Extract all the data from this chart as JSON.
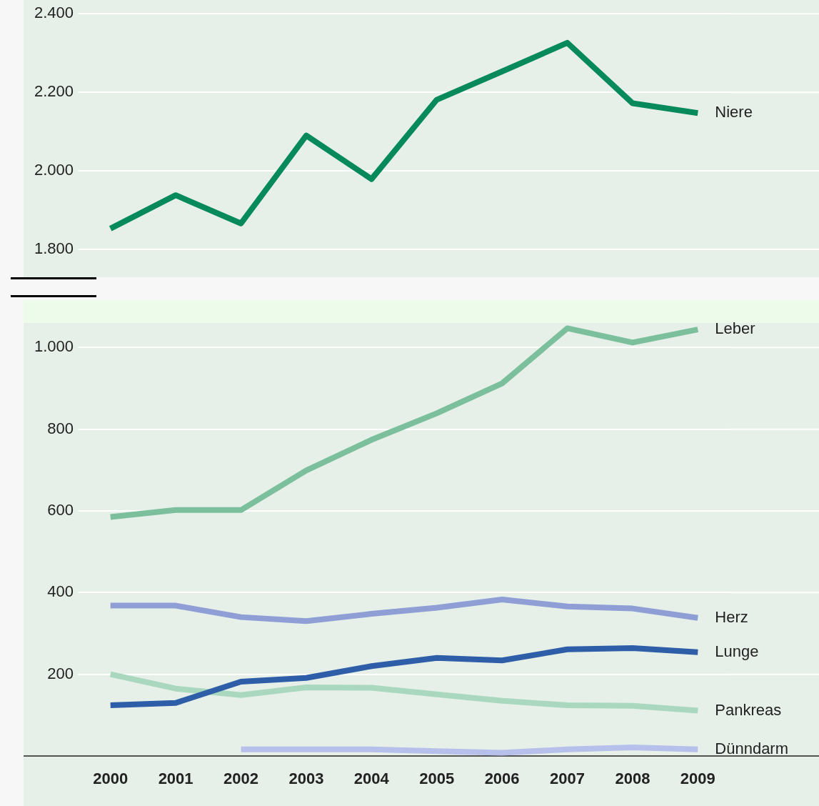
{
  "chart_data": [
    {
      "type": "line",
      "categories": [
        "2000",
        "2001",
        "2002",
        "2003",
        "2004",
        "2005",
        "2006",
        "2007",
        "2008",
        "2009"
      ],
      "series": [
        {
          "name": "Niere",
          "color": "#078a5b",
          "values": [
            1853,
            1938,
            1866,
            2090,
            1979,
            2181,
            2253,
            2326,
            2172,
            2147
          ]
        }
      ],
      "ylim": [
        1800,
        2400
      ],
      "yticks": [
        {
          "value": 1800,
          "label": "1.800"
        },
        {
          "value": 2000,
          "label": "2.000"
        },
        {
          "value": 2200,
          "label": "2.200"
        },
        {
          "value": 2400,
          "label": "2.400"
        }
      ],
      "grid": "y",
      "tick_labels": "y"
    },
    {
      "type": "line",
      "categories": [
        "2000",
        "2001",
        "2002",
        "2003",
        "2004",
        "2005",
        "2006",
        "2007",
        "2008",
        "2009"
      ],
      "series": [
        {
          "name": "Leber",
          "color": "#7bbf9c",
          "values": [
            585,
            602,
            602,
            699,
            774,
            839,
            912,
            1047,
            1012,
            1044
          ]
        },
        {
          "name": "Herz",
          "color": "#8f9fd6",
          "values": [
            368,
            368,
            340,
            330,
            348,
            363,
            383,
            366,
            361,
            338
          ]
        },
        {
          "name": "Lunge",
          "color": "#2f5ea8",
          "values": [
            124,
            130,
            182,
            191,
            220,
            240,
            234,
            261,
            264,
            254
          ]
        },
        {
          "name": "Pankreas",
          "color": "#a9d8bf",
          "values": [
            200,
            165,
            149,
            168,
            167,
            151,
            135,
            124,
            123,
            111
          ]
        },
        {
          "name": "Dünndarm",
          "color": "#b7c0ea",
          "values": [
            null,
            null,
            16,
            16,
            16,
            12,
            8,
            16,
            21,
            16
          ]
        }
      ],
      "ylim": [
        0,
        1060
      ],
      "yticks": [
        200,
        400,
        600,
        800,
        {
          "value": 1000,
          "label": "1.000"
        }
      ],
      "grid": "y"
    }
  ]
}
